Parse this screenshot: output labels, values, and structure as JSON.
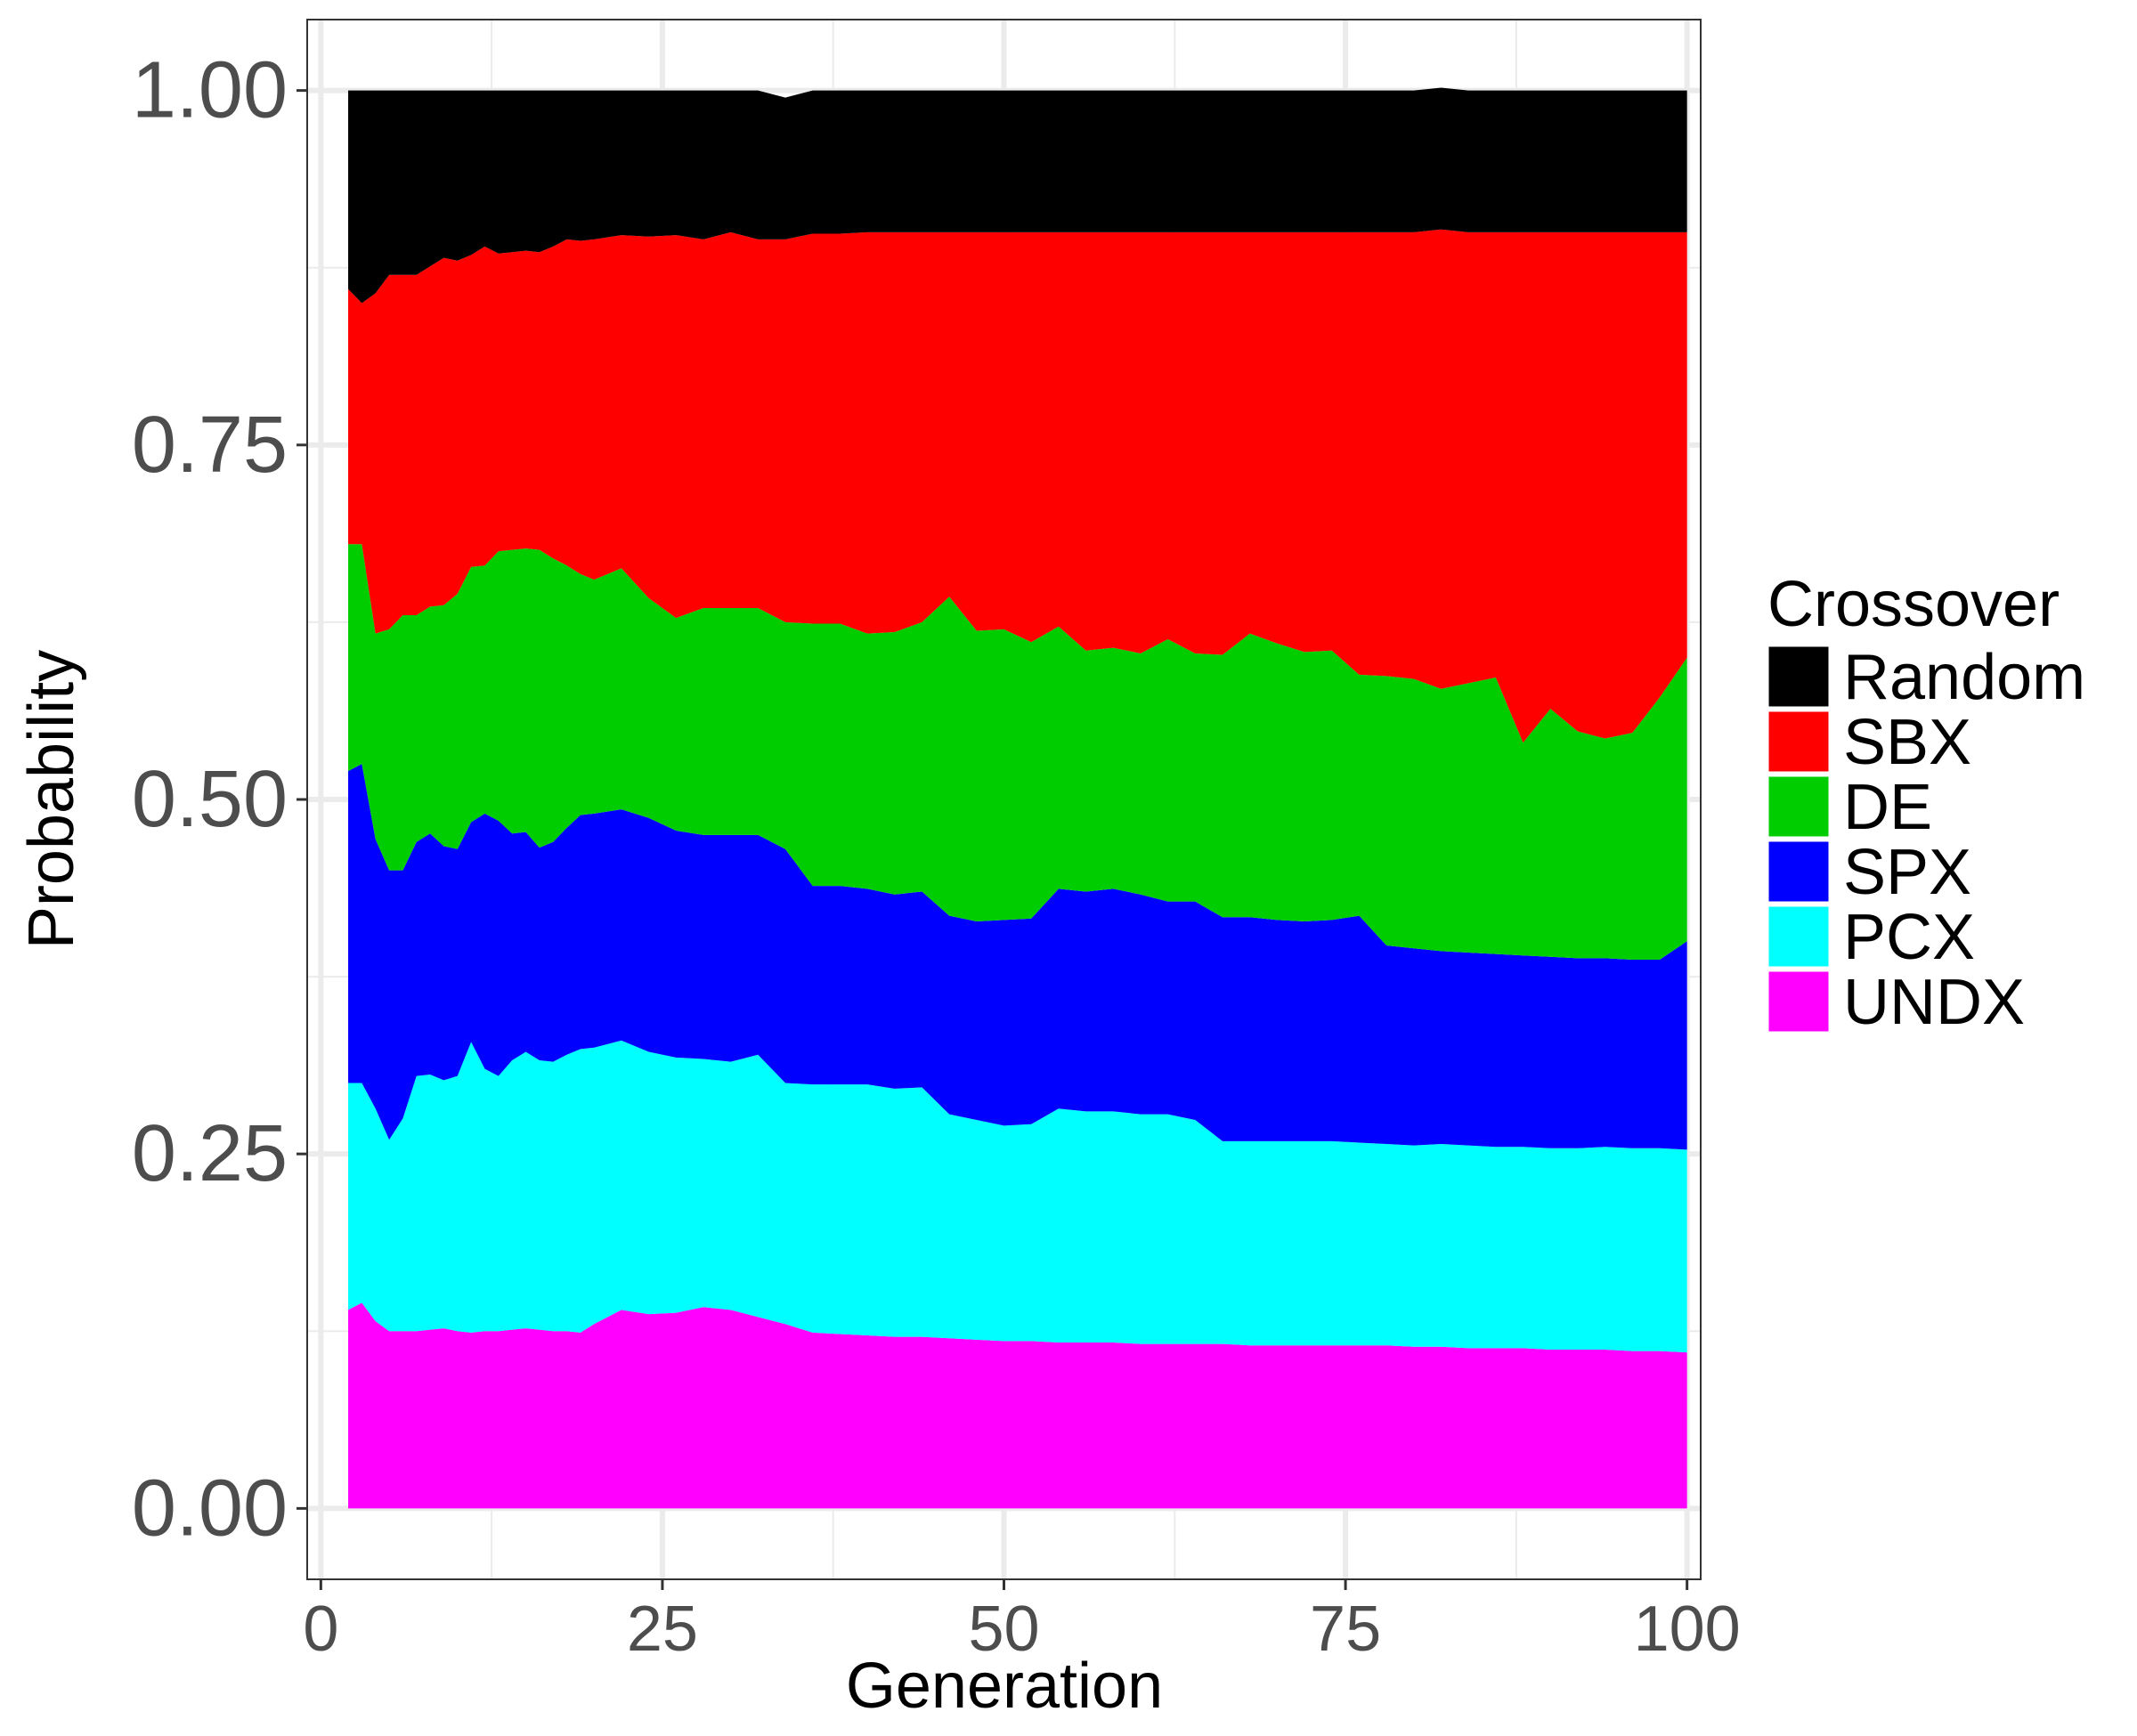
{
  "chart_data": {
    "type": "area",
    "stacked": true,
    "xlabel": "Generation",
    "ylabel": "Probability",
    "xlim": [
      -1,
      101
    ],
    "ylim": [
      -0.05,
      1.05
    ],
    "x_ticks": [
      0,
      25,
      50,
      75,
      100
    ],
    "y_ticks": [
      0.0,
      0.25,
      0.5,
      0.75,
      1.0
    ],
    "x_tick_labels": [
      "0",
      "25",
      "50",
      "75",
      "100"
    ],
    "y_tick_labels": [
      "0.00",
      "0.25",
      "0.50",
      "0.75",
      "1.00"
    ],
    "grid": true,
    "legend": {
      "title": "Crossover",
      "position": "right"
    },
    "x": [
      2,
      3,
      4,
      5,
      6,
      7,
      8,
      9,
      10,
      11,
      12,
      13,
      14,
      15,
      16,
      17,
      18,
      19,
      20,
      22,
      24,
      26,
      28,
      30,
      32,
      34,
      36,
      38,
      40,
      42,
      44,
      46,
      48,
      50,
      52,
      54,
      56,
      58,
      60,
      62,
      64,
      66,
      68,
      70,
      72,
      74,
      76,
      78,
      80,
      82,
      84,
      86,
      88,
      90,
      92,
      94,
      96,
      98,
      100
    ],
    "series": [
      {
        "name": "UNDX",
        "color": "#ff00ff",
        "values": [
          0.14,
          0.145,
          0.132,
          0.125,
          0.125,
          0.125,
          0.126,
          0.127,
          0.125,
          0.124,
          0.125,
          0.125,
          0.126,
          0.127,
          0.126,
          0.125,
          0.125,
          0.124,
          0.13,
          0.14,
          0.137,
          0.138,
          0.142,
          0.14,
          0.135,
          0.13,
          0.124,
          0.123,
          0.122,
          0.121,
          0.121,
          0.12,
          0.119,
          0.118,
          0.118,
          0.117,
          0.117,
          0.117,
          0.116,
          0.116,
          0.116,
          0.116,
          0.115,
          0.115,
          0.115,
          0.115,
          0.115,
          0.115,
          0.114,
          0.114,
          0.113,
          0.113,
          0.113,
          0.112,
          0.112,
          0.112,
          0.111,
          0.111,
          0.11
        ]
      },
      {
        "name": "PCX",
        "color": "#00ffff",
        "values": [
          0.16,
          0.155,
          0.15,
          0.135,
          0.15,
          0.18,
          0.18,
          0.175,
          0.18,
          0.205,
          0.185,
          0.18,
          0.19,
          0.195,
          0.19,
          0.19,
          0.195,
          0.2,
          0.195,
          0.19,
          0.185,
          0.18,
          0.175,
          0.175,
          0.185,
          0.17,
          0.175,
          0.176,
          0.177,
          0.175,
          0.176,
          0.158,
          0.155,
          0.152,
          0.153,
          0.165,
          0.163,
          0.163,
          0.162,
          0.162,
          0.158,
          0.143,
          0.144,
          0.144,
          0.144,
          0.144,
          0.143,
          0.142,
          0.142,
          0.143,
          0.143,
          0.142,
          0.142,
          0.142,
          0.142,
          0.143,
          0.143,
          0.143,
          0.143
        ]
      },
      {
        "name": "SPX",
        "color": "#0000ff",
        "values": [
          0.22,
          0.225,
          0.19,
          0.19,
          0.175,
          0.165,
          0.17,
          0.165,
          0.16,
          0.155,
          0.18,
          0.18,
          0.16,
          0.155,
          0.15,
          0.155,
          0.16,
          0.165,
          0.165,
          0.163,
          0.165,
          0.16,
          0.158,
          0.16,
          0.155,
          0.165,
          0.14,
          0.14,
          0.138,
          0.137,
          0.138,
          0.14,
          0.14,
          0.145,
          0.145,
          0.155,
          0.155,
          0.157,
          0.155,
          0.15,
          0.154,
          0.158,
          0.158,
          0.156,
          0.155,
          0.156,
          0.16,
          0.14,
          0.139,
          0.136,
          0.136,
          0.136,
          0.135,
          0.135,
          0.134,
          0.133,
          0.133,
          0.133,
          0.147
        ]
      },
      {
        "name": "DE",
        "color": "#00cd00",
        "values": [
          0.16,
          0.155,
          0.145,
          0.17,
          0.18,
          0.16,
          0.16,
          0.17,
          0.18,
          0.18,
          0.175,
          0.19,
          0.2,
          0.2,
          0.21,
          0.2,
          0.185,
          0.17,
          0.165,
          0.17,
          0.155,
          0.15,
          0.16,
          0.16,
          0.16,
          0.16,
          0.185,
          0.185,
          0.18,
          0.185,
          0.19,
          0.225,
          0.205,
          0.205,
          0.195,
          0.185,
          0.17,
          0.17,
          0.17,
          0.185,
          0.175,
          0.185,
          0.2,
          0.195,
          0.19,
          0.19,
          0.17,
          0.19,
          0.19,
          0.185,
          0.19,
          0.195,
          0.15,
          0.175,
          0.16,
          0.155,
          0.16,
          0.185,
          0.2
        ]
      },
      {
        "name": "SBX",
        "color": "#ff0000",
        "values": [
          0.18,
          0.17,
          0.24,
          0.25,
          0.24,
          0.24,
          0.24,
          0.245,
          0.235,
          0.22,
          0.225,
          0.21,
          0.21,
          0.21,
          0.21,
          0.22,
          0.23,
          0.235,
          0.24,
          0.235,
          0.255,
          0.27,
          0.26,
          0.265,
          0.26,
          0.27,
          0.275,
          0.275,
          0.283,
          0.282,
          0.275,
          0.257,
          0.281,
          0.28,
          0.289,
          0.278,
          0.295,
          0.293,
          0.297,
          0.287,
          0.297,
          0.298,
          0.283,
          0.29,
          0.296,
          0.295,
          0.312,
          0.313,
          0.315,
          0.324,
          0.318,
          0.314,
          0.36,
          0.336,
          0.352,
          0.357,
          0.353,
          0.328,
          0.3
        ]
      },
      {
        "name": "Random",
        "color": "#000000",
        "values": [
          0.14,
          0.15,
          0.143,
          0.13,
          0.13,
          0.13,
          0.124,
          0.118,
          0.12,
          0.116,
          0.11,
          0.115,
          0.114,
          0.113,
          0.114,
          0.11,
          0.105,
          0.106,
          0.105,
          0.102,
          0.103,
          0.102,
          0.105,
          0.1,
          0.105,
          0.1,
          0.101,
          0.101,
          0.1,
          0.1,
          0.1,
          0.1,
          0.1,
          0.1,
          0.1,
          0.1,
          0.1,
          0.1,
          0.1,
          0.1,
          0.1,
          0.1,
          0.1,
          0.1,
          0.1,
          0.1,
          0.1,
          0.1,
          0.1,
          0.1,
          0.1,
          0.1,
          0.1,
          0.1,
          0.1,
          0.1,
          0.1,
          0.1,
          0.1
        ]
      }
    ]
  }
}
